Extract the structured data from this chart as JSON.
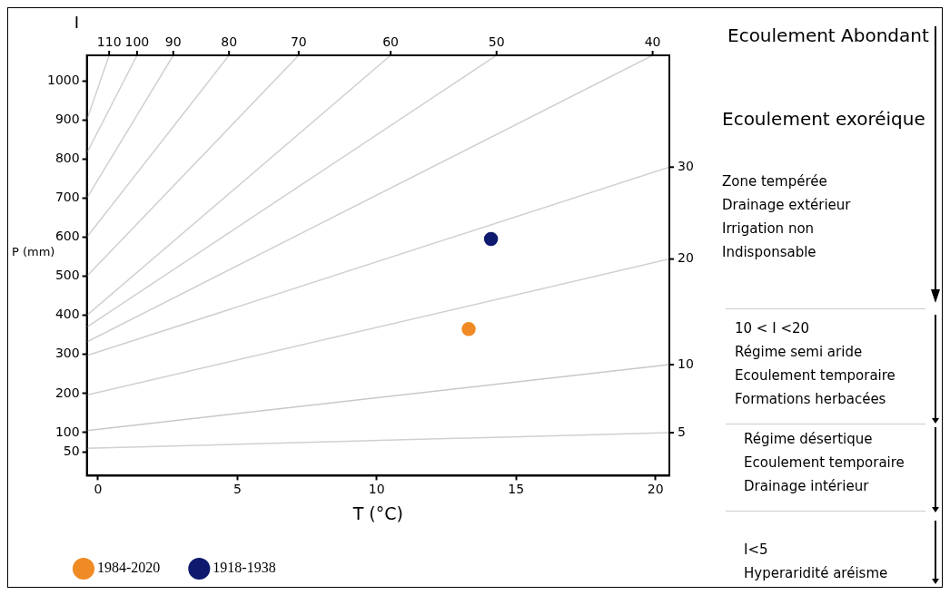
{
  "chart_data": {
    "type": "scatter",
    "xlabel": "T (°C)",
    "ylabel": "P (mm)",
    "x2label": "I",
    "xlim": [
      -0.4,
      20.5
    ],
    "xticks": [
      0,
      5,
      10,
      15,
      20
    ],
    "ylim": [
      -10,
      1065
    ],
    "yticks": [
      50,
      100,
      200,
      300,
      400,
      500,
      600,
      700,
      800,
      900,
      1000
    ],
    "grid": false,
    "legend": "bottom",
    "series": [
      {
        "name": "1984-2020",
        "color": "#f08a24",
        "marker": "circle",
        "x": [
          13.3
        ],
        "values": [
          365
        ]
      },
      {
        "name": "1918-1938",
        "color": "#0d1a6e",
        "marker": "circle",
        "x": [
          14.1
        ],
        "values": [
          595
        ]
      },
      {
        "name": "5",
        "type": "line",
        "color": "#d0d0d0",
        "marker": "none",
        "x": [
          -0.4,
          20.5
        ],
        "values": [
          60,
          100
        ]
      },
      {
        "name": "10",
        "type": "line",
        "color": "#c8c8c8",
        "marker": "none",
        "x": [
          -0.4,
          20.5
        ],
        "values": [
          105,
          274
        ]
      },
      {
        "name": "20",
        "type": "line",
        "color": "#d0d0d0",
        "marker": "none",
        "x": [
          -0.4,
          20.5
        ],
        "values": [
          196,
          544
        ]
      },
      {
        "name": "30",
        "type": "line",
        "color": "#d0d0d0",
        "marker": "none",
        "x": [
          -0.4,
          20.5
        ],
        "values": [
          297,
          779
        ]
      },
      {
        "name": "40",
        "type": "line",
        "color": "#d0d0d0",
        "marker": "none",
        "x": [
          -0.4,
          19.9
        ],
        "values": [
          332,
          1065
        ]
      },
      {
        "name": "50",
        "type": "line",
        "color": "#d0d0d0",
        "marker": "none",
        "x": [
          -0.4,
          14.3
        ],
        "values": [
          370,
          1065
        ]
      },
      {
        "name": "60",
        "type": "line",
        "color": "#d0d0d0",
        "marker": "none",
        "x": [
          -0.4,
          10.5
        ],
        "values": [
          400,
          1065
        ]
      },
      {
        "name": "70",
        "type": "line",
        "color": "#d0d0d0",
        "marker": "none",
        "x": [
          -0.4,
          7.2
        ],
        "values": [
          500,
          1065
        ]
      },
      {
        "name": "80",
        "type": "line",
        "color": "#d0d0d0",
        "marker": "none",
        "x": [
          -0.4,
          4.7
        ],
        "values": [
          600,
          1065
        ]
      },
      {
        "name": "90",
        "type": "line",
        "color": "#d0d0d0",
        "marker": "none",
        "x": [
          -0.4,
          2.7
        ],
        "values": [
          700,
          1065
        ]
      },
      {
        "name": "100",
        "type": "line",
        "color": "#d0d0d0",
        "marker": "none",
        "x": [
          -0.4,
          1.4
        ],
        "values": [
          815,
          1065
        ]
      },
      {
        "name": "110",
        "type": "line",
        "color": "#d0d0d0",
        "marker": "none",
        "x": [
          -0.4,
          0.4
        ],
        "values": [
          900,
          1065
        ]
      }
    ],
    "annotations": [
      "Ecoulement Abondant",
      "Ecoulement exoréique",
      "Zone tempérée\nDrainage extérieur\nIrrigation non\nIndisponsable",
      "10 < I <20\nRégime semi aride\nEcoulement temporaire\nFormations herbacées",
      "Régime désertique\nEcoulement temporaire\nDrainage intérieur",
      "I<5\nHyperaridité aréisme"
    ]
  }
}
